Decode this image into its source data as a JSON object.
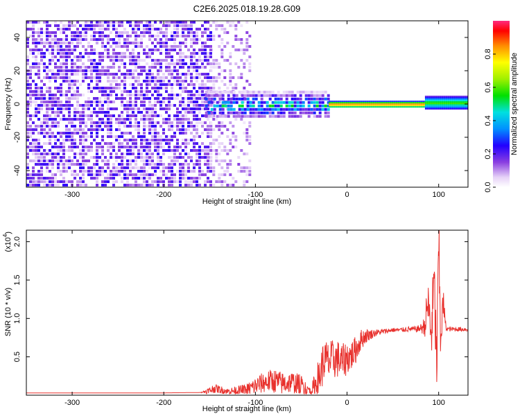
{
  "title": "C2E6.2025.018.19.28.G09",
  "colors": {
    "snr_line": "#e8302c",
    "spectrogram_base": "#7b2fd6"
  },
  "chart_data": [
    {
      "type": "heatmap",
      "xlabel": "Height of straight line (km)",
      "ylabel": "Frequency (Hz)",
      "xlim": [
        -350,
        132
      ],
      "ylim": [
        -50,
        50
      ],
      "x_ticks": [
        -300,
        -200,
        -100,
        0,
        100
      ],
      "x_tick_labels": [
        "-300",
        "-200",
        "-100",
        "0",
        "100"
      ],
      "y_ticks": [
        -40,
        -20,
        0,
        20,
        40
      ],
      "y_tick_labels": [
        "-40",
        "-20",
        "0",
        "20",
        "40"
      ],
      "colorbar": {
        "label": "Normalized spectral amplitude",
        "range": [
          0,
          1
        ],
        "ticks": [
          0.0,
          0.2,
          0.4,
          0.6,
          0.8
        ],
        "tick_labels": [
          "0.0",
          "0.2",
          "0.4",
          "0.6",
          "0.8"
        ],
        "colormap": "rainbow-white-to-magenta"
      },
      "regions": [
        {
          "x_range": [
            -350,
            -150
          ],
          "freq_range": [
            -50,
            50
          ],
          "amplitude": 0.15,
          "pattern": "noise"
        },
        {
          "x_range": [
            -150,
            -107
          ],
          "freq_range": [
            -50,
            50
          ],
          "amplitude": 0.06,
          "pattern": "sparse-noise"
        },
        {
          "x_range": [
            -155,
            -20
          ],
          "freq_center": 0,
          "freq_halfwidth": 8,
          "amplitude": 0.45,
          "pattern": "band"
        },
        {
          "x_range": [
            -20,
            85
          ],
          "freq_center": 0,
          "freq_halfwidth": 2,
          "amplitude": 0.95,
          "pattern": "line"
        },
        {
          "x_range": [
            85,
            132
          ],
          "freq_center": 1,
          "freq_halfwidth": 4,
          "amplitude": 0.6,
          "pattern": "line"
        }
      ]
    },
    {
      "type": "line",
      "xlabel": "Height of straight line (km)",
      "ylabel": "SNR (10 * v/v)",
      "y_multiplier_label": "(x10",
      "y_multiplier_exp": "4",
      "xlim": [
        -350,
        132
      ],
      "ylim": [
        0,
        21500
      ],
      "x_ticks": [
        -300,
        -200,
        -100,
        0,
        100
      ],
      "x_tick_labels": [
        "-300",
        "-200",
        "-100",
        "0",
        "100"
      ],
      "y_ticks": [
        5000,
        10000,
        15000,
        20000
      ],
      "y_tick_labels": [
        "0.5",
        "1.0",
        "1.5",
        "2.0"
      ],
      "series": [
        {
          "x": [
            -350,
            -300,
            -250,
            -200,
            -160,
            -150,
            -145,
            -130,
            -110,
            -100,
            -90,
            -80,
            -70,
            -60,
            -50,
            -40,
            -35,
            -30,
            -25,
            -20,
            -15,
            -10,
            -5,
            0,
            5,
            10,
            15,
            20,
            25,
            30,
            35,
            40,
            45,
            50,
            55,
            60,
            65,
            70,
            75,
            80,
            85,
            88,
            92,
            95,
            98,
            100,
            102,
            105,
            108,
            112,
            120,
            132
          ],
          "y": [
            300,
            300,
            300,
            300,
            350,
            600,
            900,
            500,
            700,
            1200,
            1700,
            1900,
            1500,
            1700,
            1300,
            600,
            1100,
            2600,
            4600,
            4300,
            4700,
            4700,
            4300,
            4900,
            5200,
            6000,
            7200,
            7700,
            7900,
            8100,
            8200,
            8300,
            8400,
            8500,
            8500,
            8500,
            8600,
            8600,
            8600,
            8700,
            9000,
            12000,
            8000,
            14500,
            3500,
            20000,
            8000,
            12000,
            8700,
            8600,
            8600,
            8600
          ],
          "amplitude_jitter": [
            0,
            0,
            0,
            0,
            0,
            500,
            600,
            400,
            800,
            1200,
            1400,
            1600,
            1500,
            1400,
            1400,
            800,
            1800,
            2800,
            2800,
            2700,
            2600,
            2500,
            2400,
            2200,
            2000,
            1800,
            1400,
            1000,
            700,
            500,
            400,
            350,
            300,
            300,
            300,
            300,
            350,
            350,
            400,
            500,
            1400,
            3500,
            4000,
            5000,
            4000,
            5000,
            4000,
            2000,
            300,
            300,
            300,
            300
          ]
        }
      ]
    }
  ]
}
